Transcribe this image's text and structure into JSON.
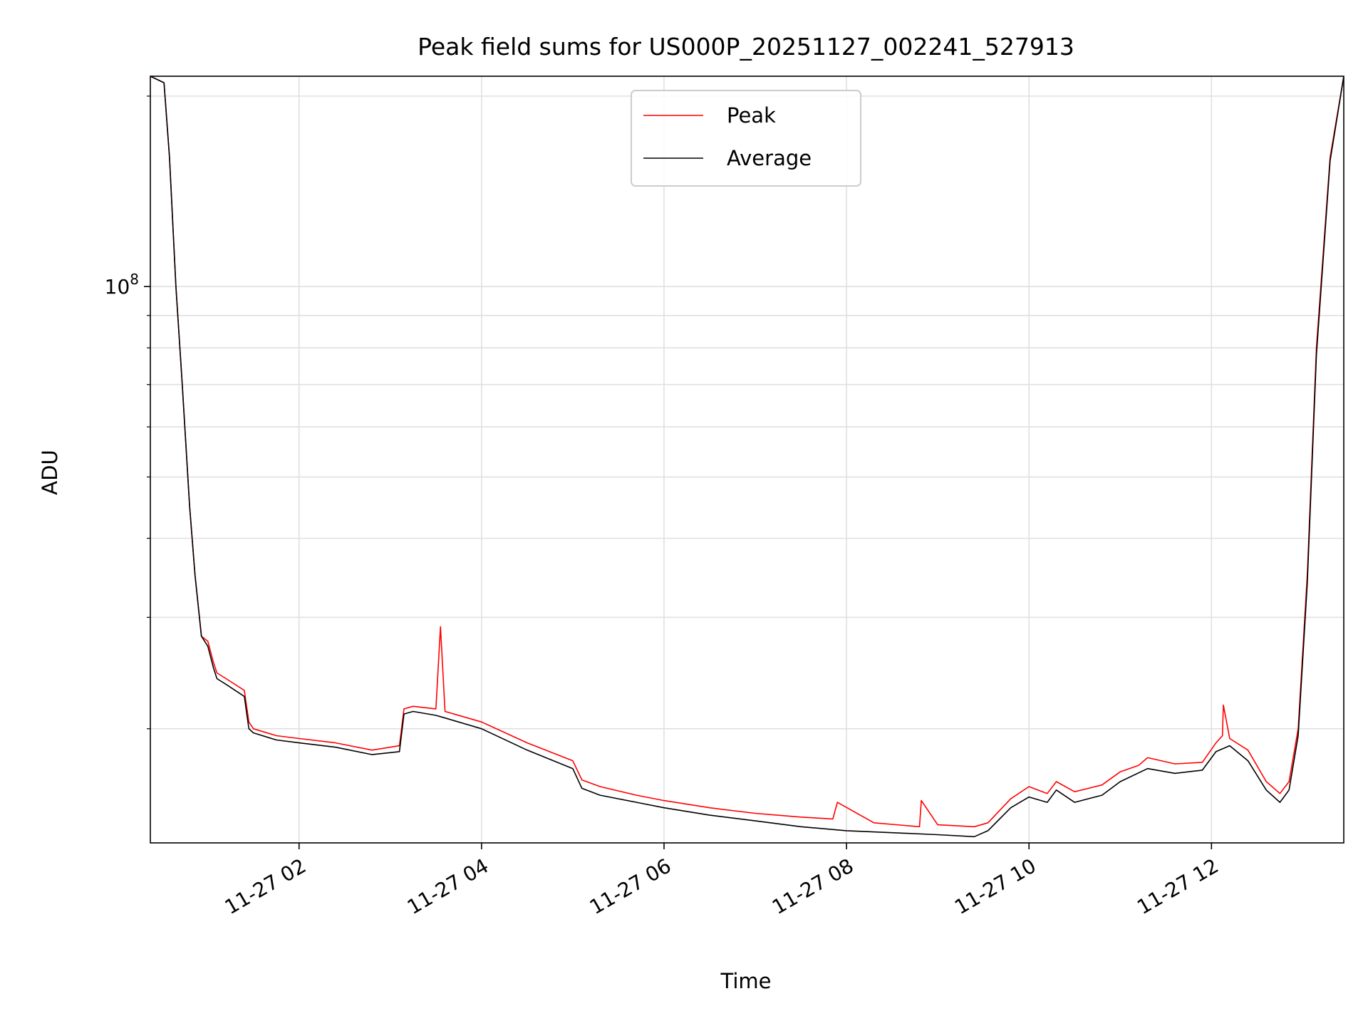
{
  "chart_data": {
    "type": "line",
    "title": "Peak field sums for US000P_20251127_002241_527913",
    "xlabel": "Time",
    "ylabel": "ADU",
    "yscale": "log",
    "ylim": [
      13200000,
      215000000
    ],
    "xlim_hours": [
      0.37,
      13.45
    ],
    "grid": true,
    "legend_position": "upper center",
    "y_major_ticks": [
      {
        "value": 100000000,
        "base": "10",
        "exp": "8"
      }
    ],
    "y_minor_ticks": [
      20000000,
      30000000,
      40000000,
      50000000,
      60000000,
      70000000,
      80000000,
      90000000,
      200000000
    ],
    "x_ticks": [
      {
        "hour": 2,
        "label": "11-27 02"
      },
      {
        "hour": 4,
        "label": "11-27 04"
      },
      {
        "hour": 6,
        "label": "11-27 06"
      },
      {
        "hour": 8,
        "label": "11-27 08"
      },
      {
        "hour": 10,
        "label": "11-27 10"
      },
      {
        "hour": 12,
        "label": "11-27 12"
      }
    ],
    "series": [
      {
        "name": "Peak",
        "color": "#ff0000",
        "x_hours": [
          0.37,
          0.52,
          0.58,
          0.65,
          0.72,
          0.8,
          0.86,
          0.93,
          1.0,
          1.06,
          1.1,
          1.2,
          1.4,
          1.45,
          1.5,
          1.75,
          2.0,
          2.4,
          2.8,
          3.1,
          3.15,
          3.25,
          3.5,
          3.55,
          3.6,
          4.0,
          4.5,
          5.0,
          5.1,
          5.3,
          5.7,
          6.0,
          6.5,
          7.0,
          7.5,
          7.85,
          7.9,
          8.3,
          8.8,
          8.82,
          9.0,
          9.4,
          9.55,
          9.8,
          10.0,
          10.2,
          10.3,
          10.5,
          10.8,
          11.0,
          11.2,
          11.3,
          11.6,
          11.9,
          12.05,
          12.12,
          12.13,
          12.2,
          12.4,
          12.6,
          12.75,
          12.85,
          12.95,
          13.05,
          13.15,
          13.3,
          13.45
        ],
        "y": [
          215000000,
          210000000,
          160000000,
          100000000,
          70000000,
          45000000,
          35000000,
          28000000,
          27500000,
          25500000,
          24500000,
          24000000,
          23000000,
          20500000,
          20000000,
          19500000,
          19300000,
          19000000,
          18500000,
          18800000,
          21500000,
          21700000,
          21500000,
          29000000,
          21300000,
          20500000,
          19000000,
          17800000,
          16600000,
          16200000,
          15700000,
          15400000,
          15000000,
          14700000,
          14500000,
          14400000,
          15300000,
          14200000,
          14000000,
          15400000,
          14100000,
          14000000,
          14200000,
          15500000,
          16200000,
          15800000,
          16500000,
          15900000,
          16300000,
          17100000,
          17500000,
          18000000,
          17600000,
          17700000,
          19000000,
          19500000,
          21800000,
          19300000,
          18500000,
          16500000,
          15800000,
          16500000,
          20000000,
          35000000,
          80000000,
          160000000,
          215000000
        ]
      },
      {
        "name": "Average",
        "color": "#000000",
        "x_hours": [
          0.37,
          0.52,
          0.58,
          0.65,
          0.72,
          0.8,
          0.86,
          0.93,
          1.0,
          1.06,
          1.1,
          1.2,
          1.4,
          1.45,
          1.5,
          1.75,
          2.0,
          2.4,
          2.8,
          3.1,
          3.15,
          3.25,
          3.5,
          3.6,
          4.0,
          4.5,
          5.0,
          5.1,
          5.3,
          5.7,
          6.0,
          6.5,
          7.0,
          7.5,
          8.0,
          8.5,
          9.0,
          9.4,
          9.55,
          9.8,
          10.0,
          10.2,
          10.3,
          10.5,
          10.8,
          11.0,
          11.3,
          11.6,
          11.9,
          12.05,
          12.2,
          12.4,
          12.6,
          12.75,
          12.85,
          12.95,
          13.05,
          13.15,
          13.3,
          13.45
        ],
        "y": [
          215000000,
          210000000,
          160000000,
          100000000,
          70000000,
          45000000,
          35000000,
          28000000,
          27000000,
          25000000,
          24000000,
          23500000,
          22500000,
          20000000,
          19700000,
          19200000,
          19000000,
          18700000,
          18200000,
          18400000,
          21100000,
          21300000,
          21000000,
          20800000,
          20000000,
          18500000,
          17300000,
          16100000,
          15700000,
          15300000,
          15000000,
          14600000,
          14300000,
          14000000,
          13800000,
          13700000,
          13600000,
          13500000,
          13800000,
          15000000,
          15600000,
          15300000,
          16000000,
          15300000,
          15700000,
          16500000,
          17300000,
          17000000,
          17200000,
          18400000,
          18800000,
          17800000,
          16000000,
          15300000,
          16000000,
          19500000,
          34000000,
          78000000,
          158000000,
          215000000
        ]
      }
    ]
  }
}
